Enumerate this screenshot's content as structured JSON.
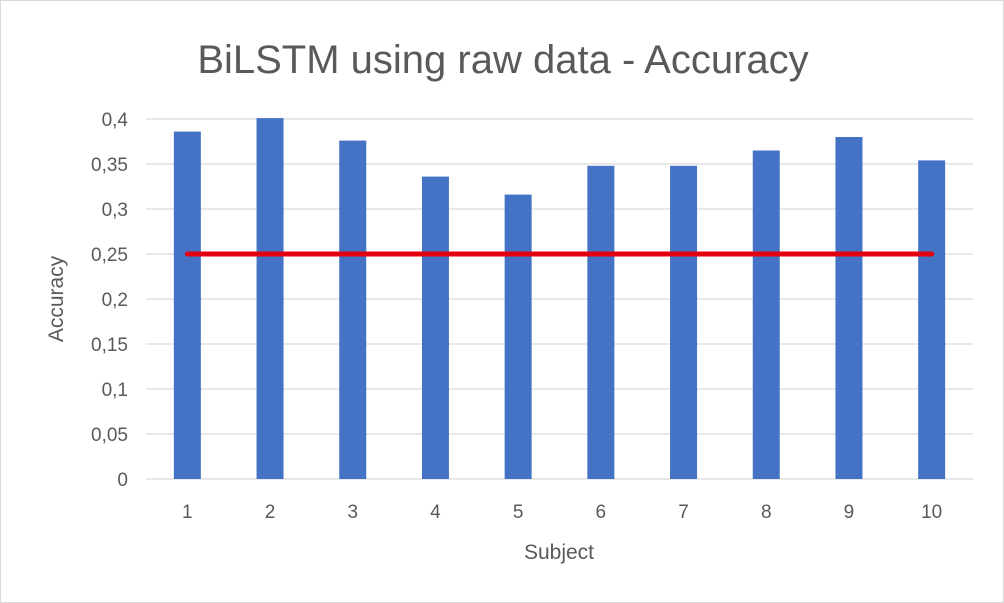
{
  "chart_data": {
    "type": "bar",
    "title": "BiLSTM using raw data - Accuracy",
    "xlabel": "Subject",
    "ylabel": "Accuracy",
    "categories": [
      "1",
      "2",
      "3",
      "4",
      "5",
      "6",
      "7",
      "8",
      "9",
      "10"
    ],
    "series": [
      {
        "values": [
          0.386,
          0.401,
          0.376,
          0.336,
          0.316,
          0.348,
          0.348,
          0.365,
          0.38,
          0.354
        ]
      }
    ],
    "reference_line": {
      "value": 0.25,
      "color": "#e3000f"
    },
    "ylim": [
      0,
      0.4
    ],
    "yticks": [
      0,
      0.05,
      0.1,
      0.15,
      0.2,
      0.25,
      0.3,
      0.35,
      0.4
    ],
    "ytick_labels": [
      "0",
      "0,05",
      "0,1",
      "0,15",
      "0,2",
      "0,25",
      "0,3",
      "0,35",
      "0,4"
    ],
    "grid": true,
    "bar_color": "#4472c4",
    "grid_color": "#d9d9d9"
  }
}
